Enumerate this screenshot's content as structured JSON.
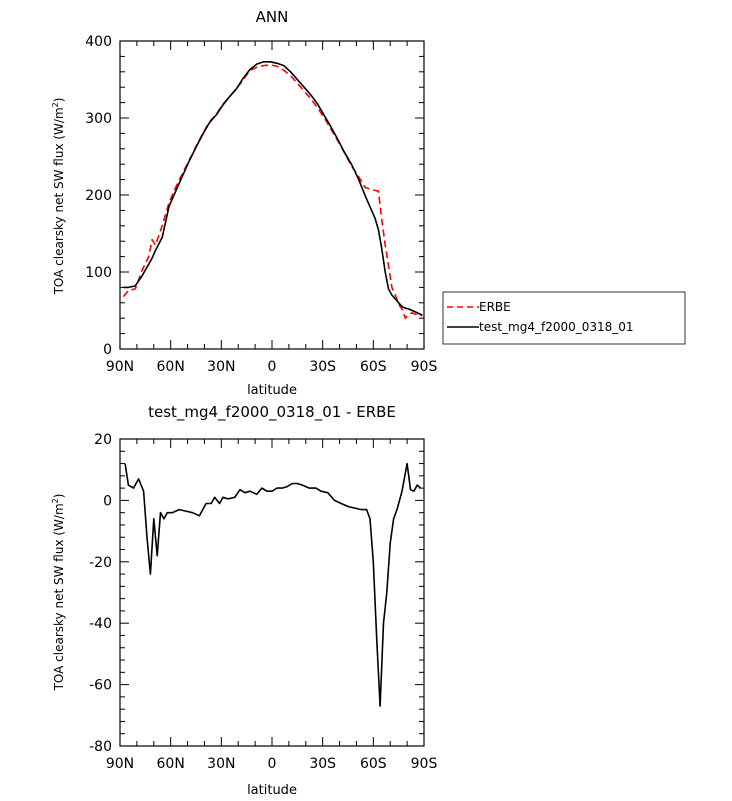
{
  "chart_data": [
    {
      "type": "line",
      "title": "ANN",
      "xlabel": "latitude",
      "ylabel": "TOA clearsky net SW flux (W/m²)",
      "xlim": [
        90,
        -90
      ],
      "ylim": [
        0,
        400
      ],
      "x_ticks": [
        {
          "value": 90,
          "label": "90N"
        },
        {
          "value": 60,
          "label": "60N"
        },
        {
          "value": 30,
          "label": "30N"
        },
        {
          "value": 0,
          "label": "0"
        },
        {
          "value": -30,
          "label": "30S"
        },
        {
          "value": -60,
          "label": "60S"
        },
        {
          "value": -90,
          "label": "90S"
        }
      ],
      "y_ticks": [
        0,
        100,
        200,
        300,
        400
      ],
      "legend_position": "right",
      "series": [
        {
          "name": "ERBE",
          "color": "#ff0000",
          "dash": "dashed",
          "x": [
            88,
            85,
            81,
            77,
            73,
            71,
            69,
            65,
            61,
            57,
            53,
            49,
            45,
            41,
            37,
            33,
            29,
            25,
            21,
            17,
            13,
            9,
            5,
            1,
            -3,
            -7,
            -11,
            -15,
            -19,
            -23,
            -27,
            -31,
            -35,
            -39,
            -43,
            -47,
            -51,
            -55,
            -59,
            -61,
            -63,
            -65,
            -67,
            -69,
            -71,
            -73,
            -75,
            -77,
            -79,
            -81,
            -83,
            -85,
            -87,
            -89
          ],
          "values": [
            68,
            76,
            78,
            102,
            120,
            142,
            135,
            160,
            190,
            210,
            228,
            245,
            263,
            280,
            295,
            305,
            318,
            328,
            338,
            350,
            362,
            366,
            368,
            369,
            367,
            362,
            355,
            345,
            335,
            325,
            313,
            300,
            285,
            270,
            255,
            238,
            225,
            210,
            207,
            206,
            205,
            168,
            135,
            108,
            80,
            70,
            58,
            52,
            40,
            45,
            47,
            45,
            44,
            43
          ]
        },
        {
          "name": "test_mg4_f2000_0318_01",
          "color": "#000000",
          "dash": "solid",
          "x": [
            88,
            85,
            81,
            77,
            73,
            71,
            69,
            65,
            61,
            57,
            53,
            49,
            45,
            41,
            37,
            33,
            29,
            25,
            21,
            17,
            13,
            9,
            5,
            1,
            -3,
            -7,
            -11,
            -15,
            -19,
            -23,
            -27,
            -31,
            -35,
            -39,
            -43,
            -47,
            -51,
            -55,
            -59,
            -61,
            -63,
            -65,
            -67,
            -69,
            -71,
            -73,
            -75,
            -77,
            -79,
            -81,
            -83,
            -85,
            -87,
            -89
          ],
          "values": [
            80,
            80,
            82,
            95,
            110,
            118,
            128,
            145,
            185,
            205,
            225,
            244,
            262,
            279,
            294,
            304,
            317,
            328,
            338,
            352,
            363,
            370,
            373,
            373,
            371,
            368,
            360,
            350,
            340,
            330,
            318,
            303,
            288,
            272,
            255,
            240,
            222,
            200,
            180,
            170,
            155,
            130,
            100,
            78,
            70,
            65,
            60,
            55,
            53,
            52,
            50,
            48,
            46,
            44
          ]
        }
      ]
    },
    {
      "type": "line",
      "title": "test_mg4_f2000_0318_01 - ERBE",
      "xlabel": "latitude",
      "ylabel": "TOA clearsky net SW flux (W/m²)",
      "xlim": [
        90,
        -90
      ],
      "ylim": [
        -80,
        20
      ],
      "x_ticks": [
        {
          "value": 90,
          "label": "90N"
        },
        {
          "value": 60,
          "label": "60N"
        },
        {
          "value": 30,
          "label": "30N"
        },
        {
          "value": 0,
          "label": "0"
        },
        {
          "value": -30,
          "label": "30S"
        },
        {
          "value": -60,
          "label": "60S"
        },
        {
          "value": -90,
          "label": "90S"
        }
      ],
      "y_ticks": [
        -80,
        -60,
        -40,
        -20,
        0,
        20
      ],
      "series": [
        {
          "color": "#000000",
          "dash": "solid",
          "x": [
            87,
            85,
            82,
            79,
            76,
            74,
            72,
            70,
            68,
            66,
            64,
            62,
            59,
            55,
            51,
            47,
            43,
            39,
            36,
            34,
            31,
            29,
            26,
            22,
            19,
            16,
            13,
            9,
            6,
            3,
            0,
            -3,
            -6,
            -9,
            -12,
            -15,
            -18,
            -22,
            -26,
            -29,
            -33,
            -37,
            -41,
            -45,
            -49,
            -53,
            -56,
            -58,
            -60,
            -62,
            -64,
            -66,
            -68,
            -70,
            -72,
            -74,
            -77,
            -80,
            -82,
            -84,
            -86,
            -88
          ],
          "values": [
            12,
            5,
            4,
            7,
            3,
            -12,
            -24,
            -6,
            -18,
            -4,
            -6,
            -4,
            -4,
            -3,
            -3.5,
            -4,
            -5,
            -1,
            -1,
            1,
            -1,
            1,
            0.5,
            1,
            3.5,
            2.5,
            3,
            2,
            4,
            3,
            3,
            4,
            4,
            4.5,
            5.5,
            5.5,
            5,
            4,
            4,
            3,
            2.5,
            0,
            -1,
            -2,
            -2.5,
            -3,
            -3,
            -6,
            -20,
            -45,
            -67,
            -40,
            -30,
            -14,
            -6,
            -3,
            3,
            12,
            3.5,
            3,
            5,
            4
          ]
        }
      ]
    }
  ]
}
